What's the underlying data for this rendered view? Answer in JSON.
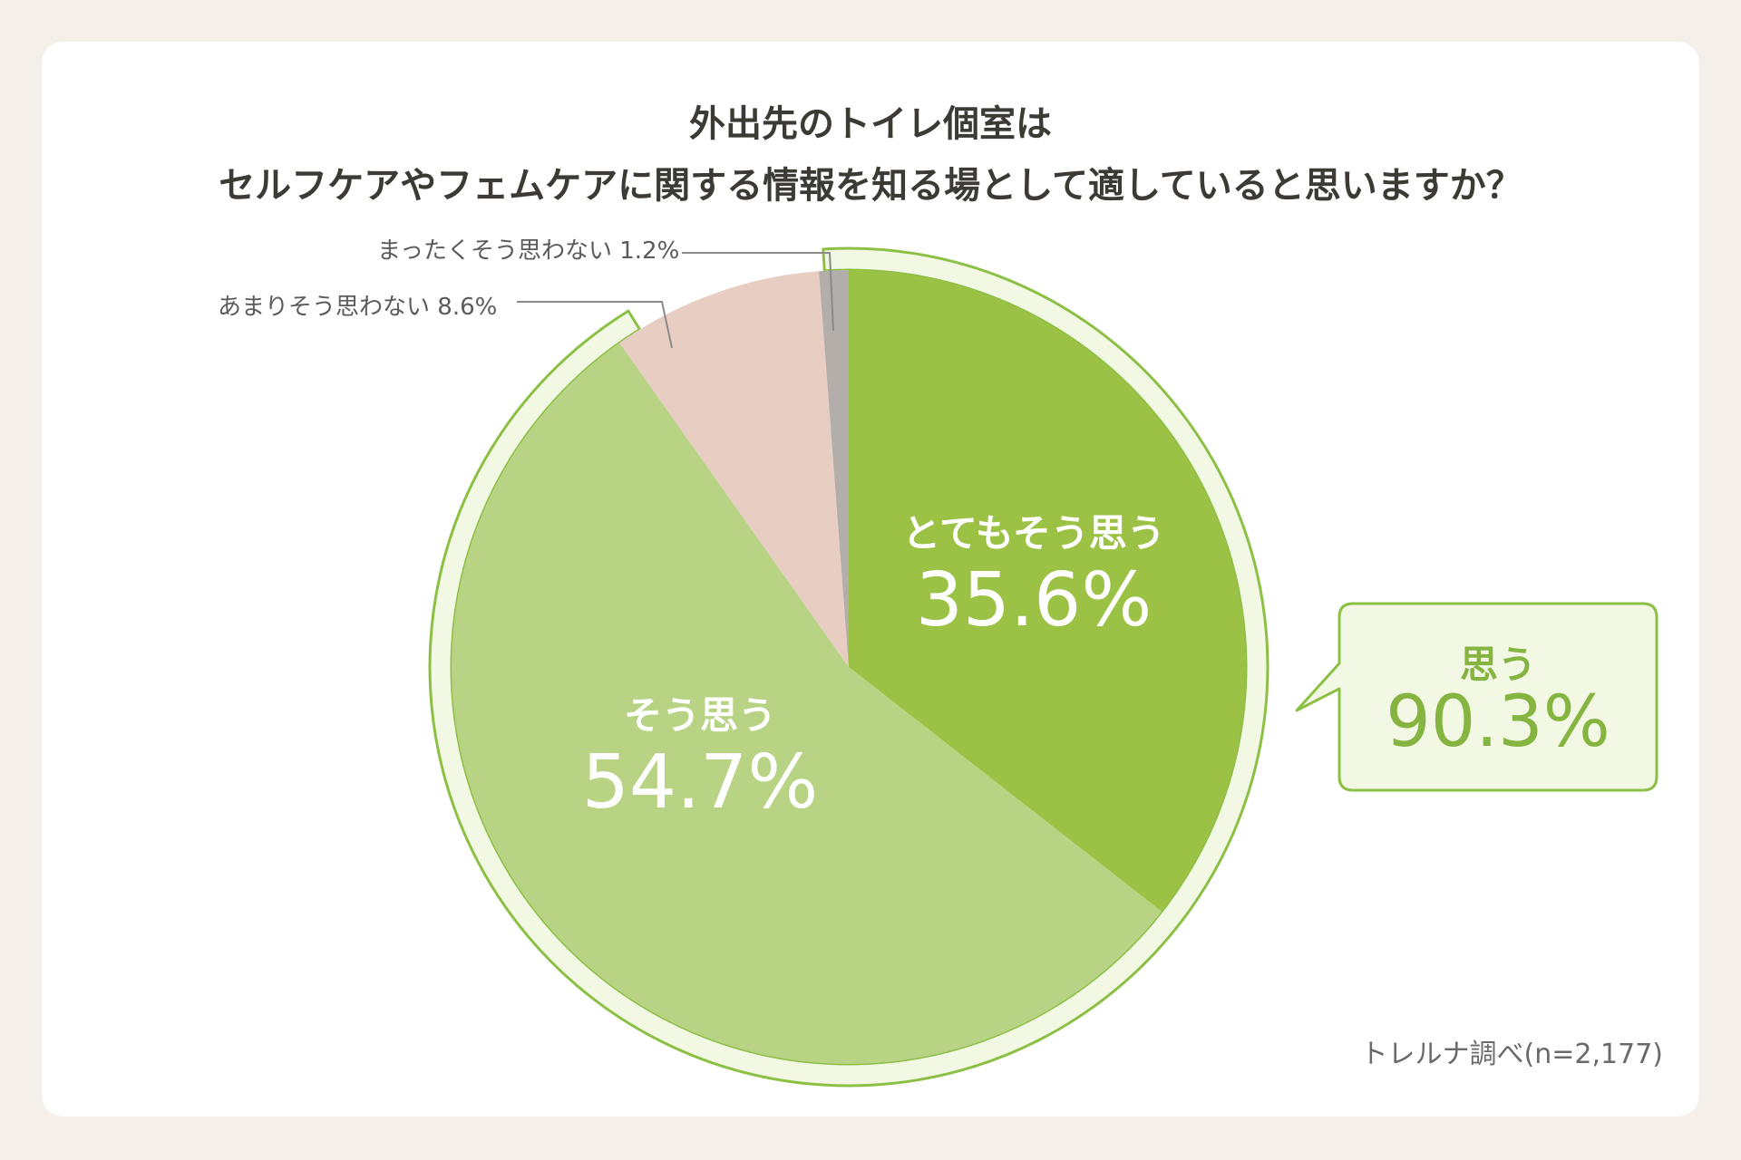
{
  "title": {
    "line1": "外出先のトイレ個室は",
    "line2": "セルフケアやフェムケアに関する情報を知る場として適していると思いますか？"
  },
  "source": "トレルナ調べ(n=2,177)",
  "summary": {
    "label": "思う",
    "value": "90.3%"
  },
  "colors": {
    "strongly_agree": "#9bc145",
    "agree": "#b8d384",
    "disagree": "#e8cdc2",
    "strongly_disagree": "#b4aeaa",
    "outline": "#8cc045",
    "outline_fill": "#f2f8e4"
  },
  "chart_data": {
    "type": "pie",
    "title": "外出先のトイレ個室は セルフケアやフェムケアに関する情報を知る場として適していると思いますか？",
    "unit": "%",
    "slices": [
      {
        "label": "とてもそう思う",
        "value": 35.6,
        "display": "35.6%"
      },
      {
        "label": "そう思う",
        "value": 54.7,
        "display": "54.7%"
      },
      {
        "label": "あまりそう思わない",
        "value": 8.6,
        "display": "8.6%"
      },
      {
        "label": "まったくそう思わない",
        "value": 1.2,
        "display": "1.2%"
      }
    ],
    "group_total": {
      "label": "思う",
      "value": 90.3,
      "display": "90.3%"
    }
  }
}
